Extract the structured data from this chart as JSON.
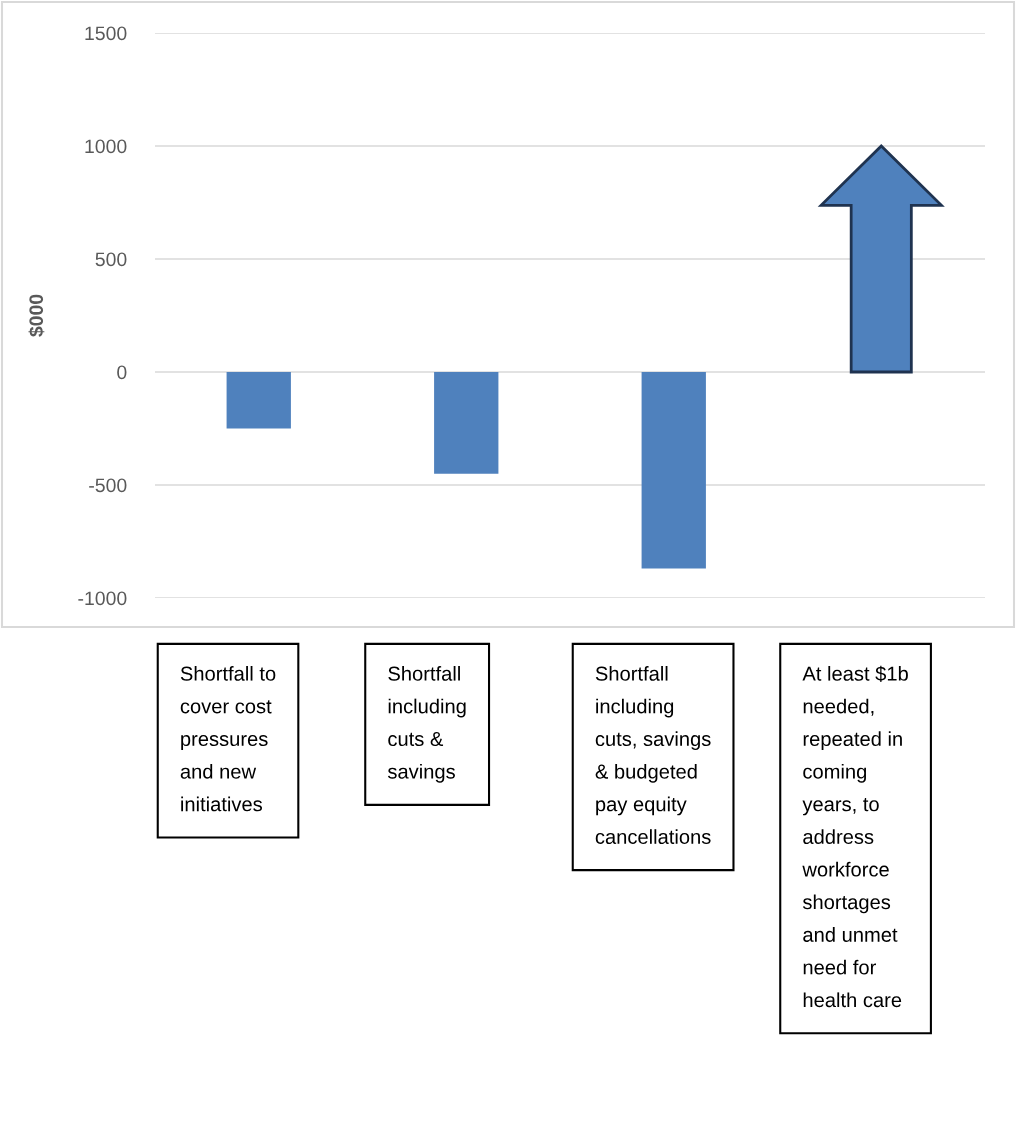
{
  "chart_data": {
    "type": "bar",
    "ylabel": "$000",
    "categories": [
      "Shortfall to\ncover cost\npressures\nand new\ninitiatives",
      "Shortfall\nincluding\ncuts &\nsavings",
      "Shortfall\nincluding\ncuts, savings\n& budgeted\npay equity\ncancellations",
      "At least $1b\nneeded,\nrepeated in\ncoming\nyears, to\naddress\nworkforce\nshortages\nand unmet\nneed for\nhealth care"
    ],
    "values": [
      -250,
      -450,
      -870,
      1000
    ],
    "color": "#4f81bd",
    "ylim": [
      -1000,
      1500
    ],
    "yticks": [
      -1000,
      -500,
      0,
      500,
      1000,
      1500
    ],
    "grid": "y",
    "legend": false
  }
}
